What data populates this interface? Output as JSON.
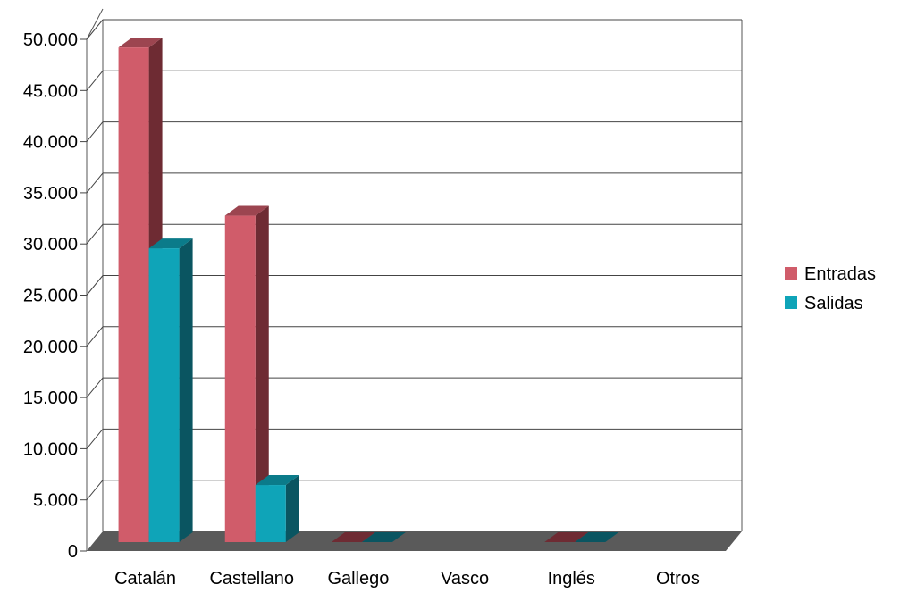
{
  "chart_data": {
    "type": "bar",
    "title": "",
    "xlabel": "",
    "ylabel": "",
    "categories": [
      "Catalán",
      "Castellano",
      "Gallego",
      "Vasco",
      "Inglés",
      "Otros"
    ],
    "series": [
      {
        "name": "Entradas",
        "values": [
          48500,
          32000,
          30,
          0,
          30,
          0
        ],
        "color": "#d05c6a"
      },
      {
        "name": "Salidas",
        "values": [
          28800,
          5600,
          30,
          0,
          30,
          0
        ],
        "color": "#0fa4b8"
      }
    ],
    "ylim": [
      0,
      50000
    ],
    "yticks": [
      "0",
      "5.000",
      "10.000",
      "15.000",
      "20.000",
      "25.000",
      "30.000",
      "35.000",
      "40.000",
      "45.000",
      "50.000"
    ],
    "grid": true,
    "three_d": true,
    "legend_position": "right",
    "colors": {
      "floor": "#5a5a5a",
      "gridline": "#333333",
      "entradas_side": "#6e2b33",
      "salidas_side": "#0a5561"
    }
  }
}
